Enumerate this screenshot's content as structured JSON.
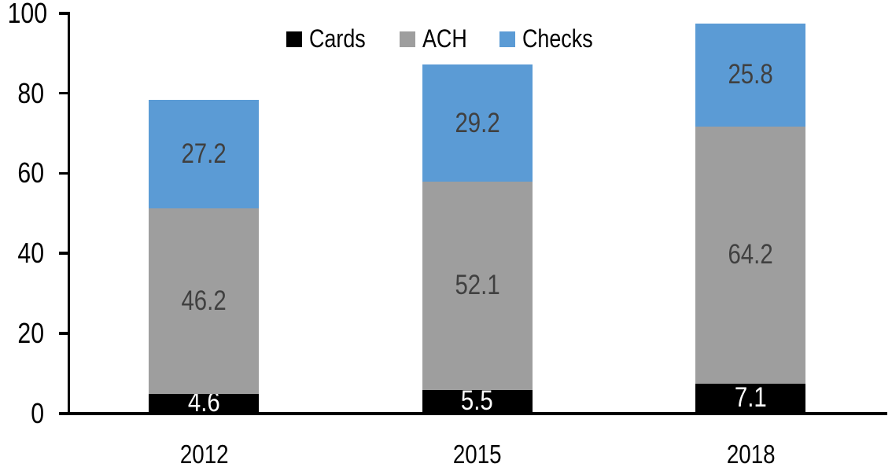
{
  "chart_data": {
    "type": "bar",
    "stacked": true,
    "title": "",
    "categories": [
      "2012",
      "2015",
      "2018"
    ],
    "series": [
      {
        "name": "Cards",
        "color": "#000000",
        "label_color": "#ffffff",
        "values": [
          4.6,
          5.5,
          7.1
        ]
      },
      {
        "name": "ACH",
        "color": "#9e9e9e",
        "label_color": "#404040",
        "values": [
          46.2,
          52.1,
          64.2
        ]
      },
      {
        "name": "Checks",
        "color": "#5b9bd5",
        "label_color": "#404040",
        "values": [
          27.2,
          29.2,
          25.8
        ]
      }
    ],
    "stack_totals": [
      78.0,
      86.8,
      97.1
    ],
    "y_ticks": [
      0,
      20,
      40,
      60,
      80,
      100
    ],
    "ylim": [
      0,
      100
    ],
    "xlabel": "",
    "ylabel": "",
    "grid": false,
    "legend_position": "top-center",
    "legend_entries": [
      "Cards",
      "ACH",
      "Checks"
    ],
    "axis_color": "#000000",
    "background_color": "#ffffff",
    "value_label_format": "one-decimal"
  }
}
